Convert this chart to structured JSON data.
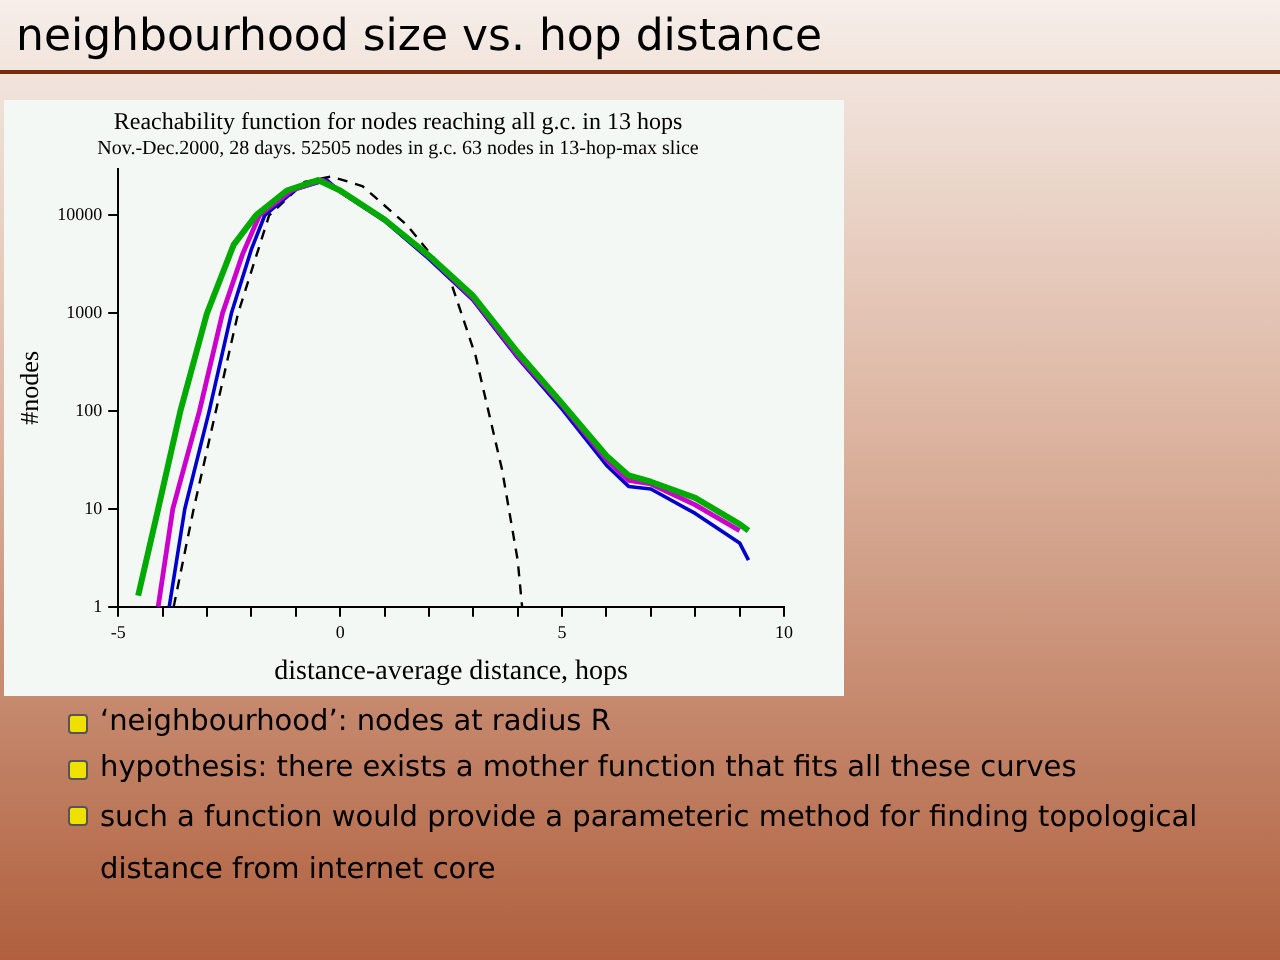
{
  "chart_data": {
    "type": "line",
    "title": "neighbourhood size vs. hop distance",
    "subtitle": "Reachability function for nodes reaching all g.c. in 13 hops",
    "annotations": [
      "Nov.-Dec.2000, 28 days. 52505 nodes in g.c. 63 nodes in 13-hop-max slice",
      "‘neighbourhood’: nodes at radius R",
      "hypothesis: there exists a mother function that fits all these curves",
      "such a function would provide a parameteric method for finding topological distance from internet core"
    ],
    "xlabel": "distance-average distance, hops",
    "ylabel": "#nodes",
    "log": "y",
    "grid": false,
    "legend": false,
    "marker": "none",
    "xlim": [
      -5,
      10
    ],
    "xticks": [
      -5,
      {
        "value": -4,
        "label": null
      },
      {
        "value": -3,
        "label": null
      },
      {
        "value": -2,
        "label": null
      },
      {
        "value": -1,
        "label": null
      },
      0,
      {
        "value": 1,
        "label": null
      },
      {
        "value": 2,
        "label": null
      },
      {
        "value": 3,
        "label": null
      },
      {
        "value": 4,
        "label": null
      },
      5,
      {
        "value": 6,
        "label": null
      },
      {
        "value": 7,
        "label": null
      },
      {
        "value": 8,
        "label": null
      },
      {
        "value": 9,
        "label": null
      },
      10
    ],
    "ylim": [
      1,
      30000
    ],
    "yticks": [
      1,
      10,
      100,
      1000,
      10000
    ],
    "series": [
      {
        "color": "#00aa00",
        "x": [
          -4.55,
          -4.1,
          -3.6,
          -3.0,
          -2.4,
          -1.9,
          -1.2,
          -0.5,
          0,
          1,
          2,
          3,
          4,
          5,
          6,
          6.5,
          7,
          8,
          9,
          9.2
        ],
        "values": [
          1.3,
          10,
          100,
          1000,
          5000,
          10000,
          18000,
          23000,
          18000,
          9100,
          3900,
          1500,
          400,
          120,
          35,
          22,
          19,
          13,
          7,
          6
        ]
      },
      {
        "color": "#cc00cc",
        "x": [
          -4.1,
          -3.77,
          -3.17,
          -2.65,
          -2.2,
          -1.82,
          -1.1,
          -0.4,
          0,
          1,
          2,
          3,
          4,
          5,
          6,
          6.5,
          7,
          8,
          9
        ],
        "values": [
          1,
          10,
          100,
          1000,
          4000,
          10000,
          18000,
          23000,
          17800,
          9100,
          3800,
          1420,
          370,
          115,
          32,
          19.6,
          18,
          11,
          6
        ]
      },
      {
        "color": "#0000cc",
        "x": [
          -3.85,
          -3.5,
          -2.95,
          -2.45,
          -2.0,
          -1.7,
          -1.0,
          -0.3,
          0,
          1,
          2,
          3,
          4,
          5,
          6,
          6.5,
          7,
          8,
          9,
          9.2
        ],
        "values": [
          1,
          10,
          100,
          1000,
          4500,
          10000,
          18500,
          23000,
          17500,
          8800,
          3600,
          1350,
          350,
          105,
          28,
          17,
          16,
          9,
          4.5,
          3
        ]
      },
      {
        "color": "#000000",
        "line_style": "dashed",
        "x": [
          -3.75,
          -3.3,
          -2.8,
          -2.3,
          -1.6,
          -0.8,
          -0.2,
          0.5,
          1.5,
          2.45,
          3.05,
          3.65,
          4.0,
          4.1
        ],
        "values": [
          1,
          10,
          100,
          1000,
          10000,
          22000,
          25000,
          20000,
          8000,
          2400,
          370,
          25,
          3,
          1
        ]
      }
    ]
  }
}
